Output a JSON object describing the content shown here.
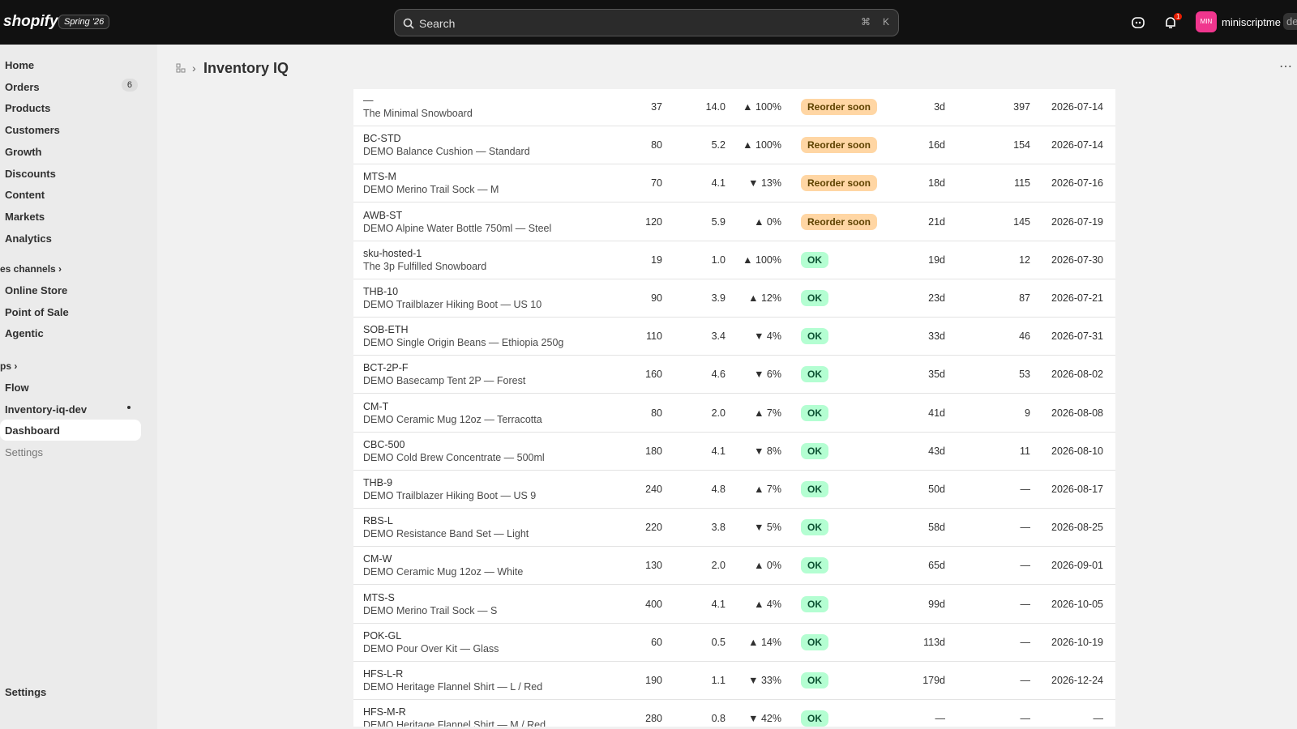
{
  "topbar": {
    "brand": "shopify",
    "badge": "Spring '26",
    "search": "Search",
    "shortcut": [
      "⌘",
      "K"
    ],
    "notifications": "1",
    "avatar": "MIN",
    "user": "miniscriptme",
    "extra": "de"
  },
  "sidebar": {
    "main": [
      {
        "label": "Home"
      },
      {
        "label": "Orders",
        "badge": "6"
      },
      {
        "label": "Products"
      },
      {
        "label": "Customers"
      },
      {
        "label": "Growth"
      },
      {
        "label": "Discounts"
      },
      {
        "label": "Content"
      },
      {
        "label": "Markets"
      },
      {
        "label": "Analytics"
      }
    ],
    "sales_channels": {
      "title": "es channels",
      "items": [
        {
          "label": "Online Store"
        },
        {
          "label": "Point of Sale"
        },
        {
          "label": "Agentic"
        }
      ]
    },
    "apps": {
      "title": "ps",
      "items": [
        {
          "label": "Flow"
        },
        {
          "label": "Inventory-iq-dev"
        },
        {
          "label": "Dashboard"
        },
        {
          "label": "Settings"
        }
      ]
    },
    "footer": "Settings"
  },
  "header": {
    "title": "Inventory IQ"
  },
  "table": {
    "rows": [
      [
        "—",
        "The Minimal Snowboard",
        "37",
        "14.0",
        "▲ 100%",
        "Reorder soon",
        "3d",
        "397",
        "2026-07-14"
      ],
      [
        "BC-STD",
        "DEMO Balance Cushion — Standard",
        "80",
        "5.2",
        "▲ 100%",
        "Reorder soon",
        "16d",
        "154",
        "2026-07-14"
      ],
      [
        "MTS-M",
        "DEMO Merino Trail Sock — M",
        "70",
        "4.1",
        "▼ 13%",
        "Reorder soon",
        "18d",
        "115",
        "2026-07-16"
      ],
      [
        "AWB-ST",
        "DEMO Alpine Water Bottle 750ml — Steel",
        "120",
        "5.9",
        "▲ 0%",
        "Reorder soon",
        "21d",
        "145",
        "2026-07-19"
      ],
      [
        "sku-hosted-1",
        "The 3p Fulfilled Snowboard",
        "19",
        "1.0",
        "▲ 100%",
        "OK",
        "19d",
        "12",
        "2026-07-30"
      ],
      [
        "THB-10",
        "DEMO Trailblazer Hiking Boot — US 10",
        "90",
        "3.9",
        "▲ 12%",
        "OK",
        "23d",
        "87",
        "2026-07-21"
      ],
      [
        "SOB-ETH",
        "DEMO Single Origin Beans — Ethiopia 250g",
        "110",
        "3.4",
        "▼ 4%",
        "OK",
        "33d",
        "46",
        "2026-07-31"
      ],
      [
        "BCT-2P-F",
        "DEMO Basecamp Tent 2P — Forest",
        "160",
        "4.6",
        "▼ 6%",
        "OK",
        "35d",
        "53",
        "2026-08-02"
      ],
      [
        "CM-T",
        "DEMO Ceramic Mug 12oz — Terracotta",
        "80",
        "2.0",
        "▲ 7%",
        "OK",
        "41d",
        "9",
        "2026-08-08"
      ],
      [
        "CBC-500",
        "DEMO Cold Brew Concentrate — 500ml",
        "180",
        "4.1",
        "▼ 8%",
        "OK",
        "43d",
        "11",
        "2026-08-10"
      ],
      [
        "THB-9",
        "DEMO Trailblazer Hiking Boot — US 9",
        "240",
        "4.8",
        "▲ 7%",
        "OK",
        "50d",
        "—",
        "2026-08-17"
      ],
      [
        "RBS-L",
        "DEMO Resistance Band Set — Light",
        "220",
        "3.8",
        "▼ 5%",
        "OK",
        "58d",
        "—",
        "2026-08-25"
      ],
      [
        "CM-W",
        "DEMO Ceramic Mug 12oz — White",
        "130",
        "2.0",
        "▲ 0%",
        "OK",
        "65d",
        "—",
        "2026-09-01"
      ],
      [
        "MTS-S",
        "DEMO Merino Trail Sock — S",
        "400",
        "4.1",
        "▲ 4%",
        "OK",
        "99d",
        "—",
        "2026-10-05"
      ],
      [
        "POK-GL",
        "DEMO Pour Over Kit — Glass",
        "60",
        "0.5",
        "▲ 14%",
        "OK",
        "113d",
        "—",
        "2026-10-19"
      ],
      [
        "HFS-L-R",
        "DEMO Heritage Flannel Shirt — L / Red",
        "190",
        "1.1",
        "▼ 33%",
        "OK",
        "179d",
        "—",
        "2026-12-24"
      ],
      [
        "HFS-M-R",
        "DEMO Heritage Flannel Shirt — M / Red",
        "280",
        "0.8",
        "▼ 42%",
        "OK",
        "—",
        "—",
        "—"
      ]
    ]
  }
}
